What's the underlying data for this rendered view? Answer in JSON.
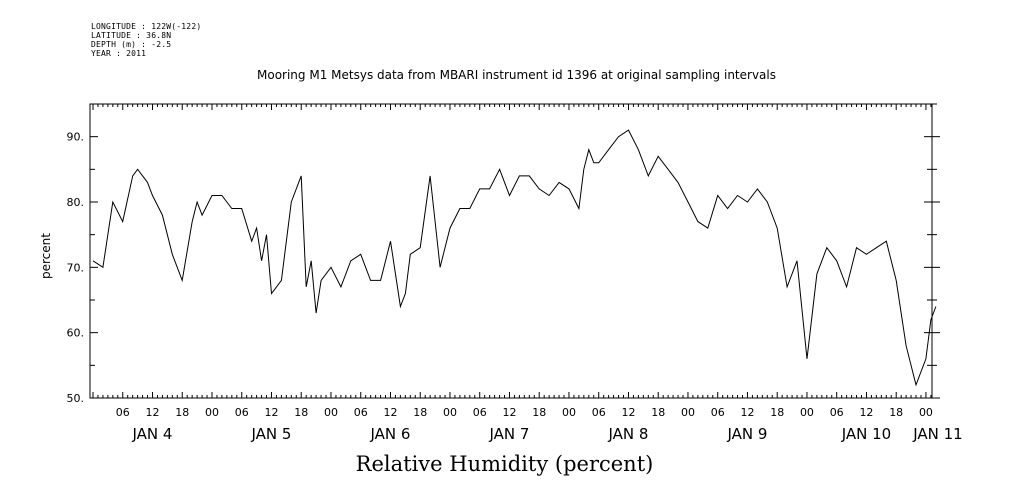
{
  "header": {
    "longitude": "LONGITUDE : 122W(-122)",
    "latitude": "LATITUDE : 36.8N",
    "depth": "DEPTH (m) : -2.5",
    "year": "YEAR : 2011"
  },
  "chart_data": {
    "type": "line",
    "title": "Mooring M1 Metsys data from MBARI instrument id 1396 at original sampling intervals",
    "xlabel": "Relative Humidity (percent)",
    "ylabel": "percent",
    "ylim": [
      50,
      95
    ],
    "yticks": [
      50,
      60,
      70,
      80,
      90
    ],
    "ytick_labels": [
      "50.",
      "60.",
      "70.",
      "80.",
      "90."
    ],
    "xlim_hours": [
      0,
      172
    ],
    "hour_tick_labels": [
      "06",
      "12",
      "18",
      "00",
      "06",
      "12",
      "18",
      "00",
      "06",
      "12",
      "18",
      "00",
      "06",
      "12",
      "18",
      "00",
      "06",
      "12",
      "18",
      "00",
      "06",
      "12",
      "18",
      "00",
      "06",
      "12",
      "18",
      "00"
    ],
    "day_labels": [
      "JAN  4",
      "JAN  5",
      "JAN  6",
      "JAN  7",
      "JAN  8",
      "JAN  9",
      "JAN 10",
      "JAN 11"
    ],
    "grid": false,
    "series": [
      {
        "color": "#000000",
        "x": [
          0,
          2,
          4,
          6,
          8,
          9,
          10,
          11,
          12,
          14,
          16,
          18,
          20,
          21,
          22,
          24,
          26,
          28,
          30,
          32,
          33,
          34,
          35,
          36,
          38,
          40,
          42,
          43,
          44,
          45,
          46,
          48,
          50,
          52,
          54,
          56,
          58,
          60,
          62,
          63,
          64,
          66,
          68,
          70,
          71,
          72,
          74,
          76,
          78,
          80,
          82,
          84,
          86,
          88,
          90,
          92,
          94,
          96,
          98,
          99,
          100,
          101,
          102,
          104,
          106,
          108,
          110,
          112,
          114,
          116,
          118,
          120,
          122,
          124,
          126,
          128,
          130,
          132,
          134,
          136,
          138,
          140,
          142,
          144,
          146,
          148,
          150,
          152,
          154,
          156,
          158,
          160,
          162,
          164,
          166,
          168,
          169,
          170
        ],
        "values": [
          71,
          70,
          80,
          77,
          84,
          85,
          84,
          83,
          81,
          78,
          72,
          68,
          77,
          80,
          78,
          81,
          81,
          79,
          79,
          74,
          76,
          71,
          75,
          66,
          68,
          80,
          84,
          67,
          71,
          63,
          68,
          70,
          67,
          71,
          72,
          68,
          68,
          74,
          64,
          66,
          72,
          73,
          84,
          70,
          73,
          76,
          79,
          79,
          82,
          82,
          85,
          81,
          84,
          84,
          82,
          81,
          83,
          82,
          79,
          85,
          88,
          86,
          86,
          88,
          90,
          91,
          88,
          84,
          87,
          85,
          83,
          80,
          77,
          76,
          81,
          79,
          81,
          80,
          82,
          80,
          76,
          67,
          71,
          56,
          69,
          73,
          71,
          67,
          73,
          72,
          73,
          74,
          68,
          58,
          52,
          56,
          62,
          64
        ]
      }
    ]
  }
}
